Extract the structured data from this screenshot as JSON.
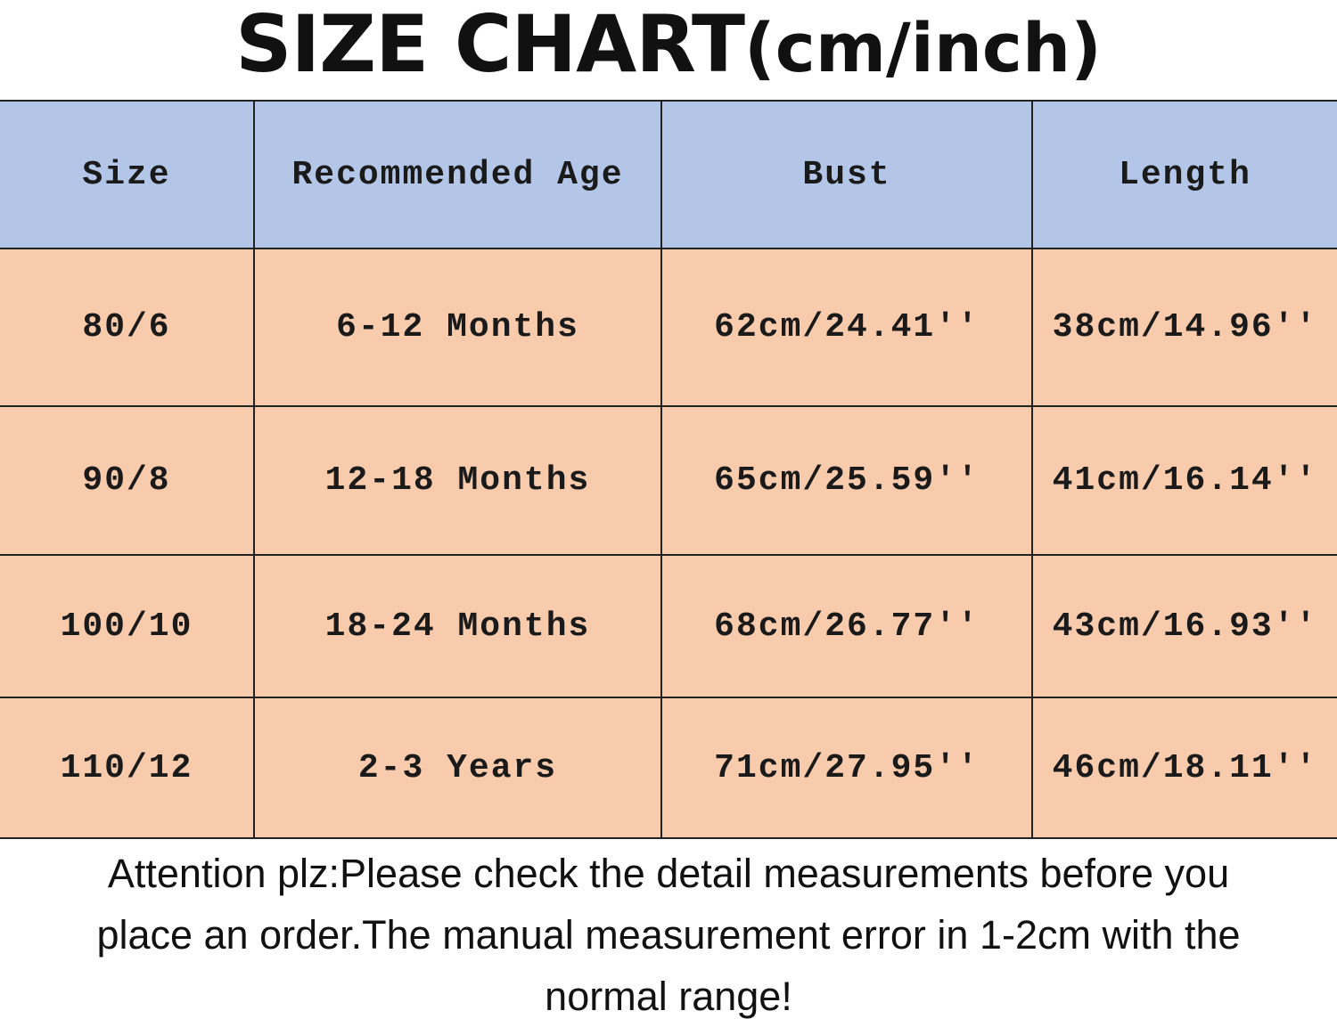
{
  "title": {
    "main": "SIZE CHART",
    "unit": "(cm/inch)"
  },
  "colors": {
    "header_bg": "#b4c6e7",
    "body_bg": "#f8cbad"
  },
  "table": {
    "headers": [
      "Size",
      "Recommended Age",
      "Bust",
      "Length"
    ],
    "rows": [
      [
        "80/6",
        "6-12 Months",
        "62cm/24.41''",
        "38cm/14.96''"
      ],
      [
        "90/8",
        "12-18 Months",
        "65cm/25.59''",
        "41cm/16.14''"
      ],
      [
        "100/10",
        "18-24 Months",
        "68cm/26.77''",
        "43cm/16.93''"
      ],
      [
        "110/12",
        "2-3 Years",
        "71cm/27.95''",
        "46cm/18.11''"
      ]
    ]
  },
  "note": {
    "line1": "Attention plz:Please check the detail measurements before you",
    "line2": "place an order.The manual measurement error in 1-2cm with the",
    "line3": "normal range!"
  }
}
